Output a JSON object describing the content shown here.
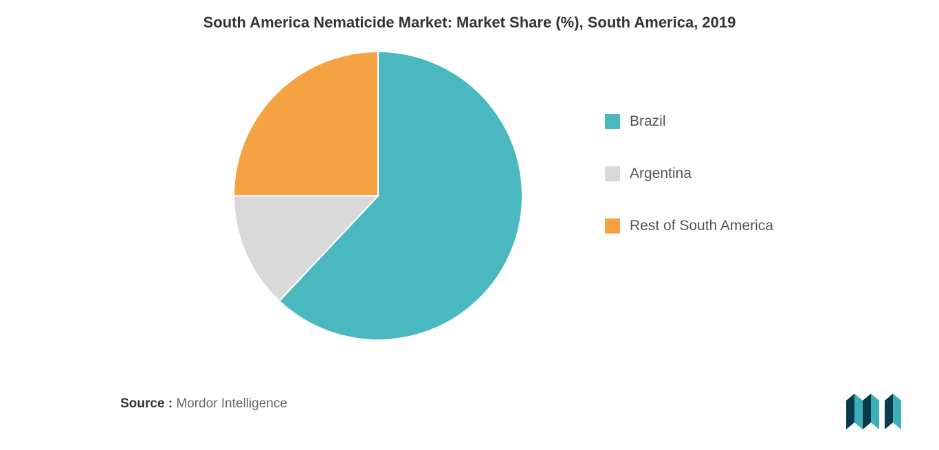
{
  "chart": {
    "type": "pie",
    "title": "South America Nematicide Market: Market Share (%), South America, 2019",
    "title_fontsize": 22,
    "title_color": "#333333",
    "background_color": "#ffffff",
    "series": [
      {
        "label": "Brazil",
        "value": 62,
        "color": "#4ab8bf"
      },
      {
        "label": "Argentina",
        "value": 13,
        "color": "#d9d9d9"
      },
      {
        "label": "Rest of South America",
        "value": 25,
        "color": "#f5a342"
      }
    ],
    "legend_fontsize": 21,
    "legend_text_color": "#555555",
    "slice_stroke": "#ffffff",
    "slice_stroke_width": 2
  },
  "source": {
    "label": "Source :",
    "value": "Mordor Intelligence",
    "fontsize": 19
  },
  "logo": {
    "colors": {
      "dark": "#0a3b4a",
      "teal": "#3bb0b8"
    }
  }
}
